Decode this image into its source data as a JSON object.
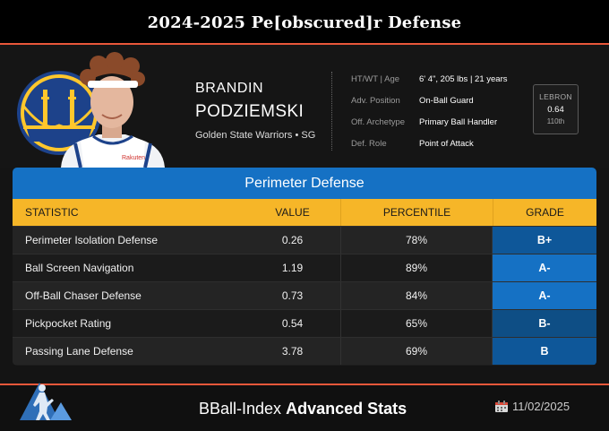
{
  "title": "2024-2025 Pe[obscured]r Defense",
  "player": {
    "first_name": "BRANDIN",
    "last_name": "PODZIEMSKI",
    "team_position": "Golden State Warriors • SG"
  },
  "info": [
    {
      "label": "HT/WT | Age",
      "value": "6' 4\", 205 lbs | 21 years"
    },
    {
      "label": "Adv. Position",
      "value": "On-Ball Guard"
    },
    {
      "label": "Off. Archetype",
      "value": "Primary Ball Handler"
    },
    {
      "label": "Def. Role",
      "value": "Point of Attack"
    }
  ],
  "lebron": {
    "label": "LEBRON",
    "value": "0.64",
    "rank": "110th"
  },
  "table": {
    "title": "Perimeter Defense",
    "headers": [
      "STATISTIC",
      "VALUE",
      "PERCENTILE",
      "GRADE"
    ],
    "rows": [
      {
        "statistic": "Perimeter Isolation Defense",
        "value": "0.26",
        "percentile": "78%",
        "grade": "B+",
        "grade_color": "#0e5799"
      },
      {
        "statistic": "Ball Screen Navigation",
        "value": "1.19",
        "percentile": "89%",
        "grade": "A-",
        "grade_color": "#1571c4"
      },
      {
        "statistic": "Off-Ball Chaser Defense",
        "value": "0.73",
        "percentile": "84%",
        "grade": "A-",
        "grade_color": "#1571c4"
      },
      {
        "statistic": "Pickpocket Rating",
        "value": "0.54",
        "percentile": "65%",
        "grade": "B-",
        "grade_color": "#0e4e85"
      },
      {
        "statistic": "Passing Lane Defense",
        "value": "3.78",
        "percentile": "69%",
        "grade": "B",
        "grade_color": "#0e5799"
      }
    ]
  },
  "footer": {
    "brand_regular": "BBall-Index",
    "brand_bold": "Advanced Stats",
    "date": "11/02/2025"
  },
  "icons": {
    "team_logo": "golden-state-bridge-logo",
    "footer_logo": "bball-index-logo",
    "calendar": "calendar-icon"
  },
  "colors": {
    "accent_rule": "#e8573a",
    "table_title_blue": "#1571c4",
    "header_gold": "#f6b628",
    "warriors_blue": "#1d428a",
    "warriors_gold": "#ffc72c"
  }
}
